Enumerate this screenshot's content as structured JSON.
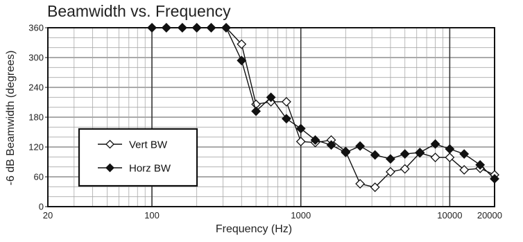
{
  "chart_data": {
    "type": "line",
    "title": "Beamwidth vs. Frequency",
    "xlabel": "Frequency (Hz)",
    "ylabel": "-6 dB Beamwidth (degrees)",
    "xscale": "log",
    "xlim": [
      20,
      20000
    ],
    "ylim": [
      0,
      360
    ],
    "xticks": [
      20,
      100,
      1000,
      10000,
      20000
    ],
    "xtick_labels": [
      "20",
      "100",
      "1000",
      "10000",
      "20000"
    ],
    "yticks": [
      0,
      60,
      120,
      180,
      240,
      300,
      360
    ],
    "grid": true,
    "legend_position": "left",
    "series": [
      {
        "name": "Vert BW",
        "marker": "open-diamond",
        "color": "#111111",
        "x": [
          100,
          125,
          160,
          200,
          250,
          315,
          400,
          500,
          630,
          800,
          1000,
          1250,
          1600,
          2000,
          2500,
          3150,
          4000,
          5000,
          6300,
          8000,
          10000,
          12500,
          16000,
          20000
        ],
        "y": [
          360,
          360,
          360,
          360,
          360,
          360,
          327,
          206,
          211,
          211,
          131,
          129,
          134,
          111,
          46,
          39,
          70,
          76,
          108,
          99,
          99,
          74,
          77,
          64
        ]
      },
      {
        "name": "Horz BW",
        "marker": "filled-diamond",
        "color": "#111111",
        "x": [
          100,
          125,
          160,
          200,
          250,
          315,
          400,
          500,
          630,
          800,
          1000,
          1250,
          1600,
          2000,
          2500,
          3150,
          4000,
          5000,
          6300,
          8000,
          10000,
          12500,
          16000,
          20000
        ],
        "y": [
          360,
          360,
          360,
          360,
          360,
          360,
          294,
          192,
          220,
          177,
          157,
          134,
          124,
          109,
          122,
          104,
          96,
          106,
          109,
          126,
          116,
          106,
          84,
          56
        ]
      }
    ]
  }
}
